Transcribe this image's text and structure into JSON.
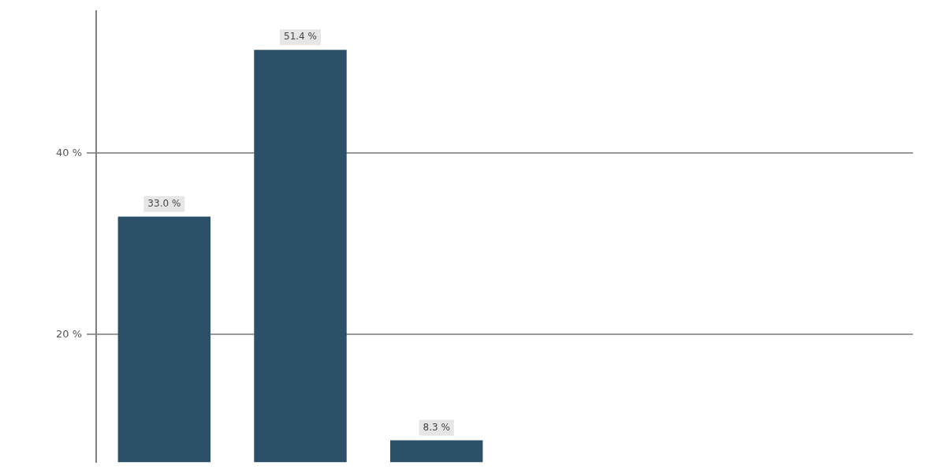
{
  "chart_data": {
    "type": "bar",
    "categories": [
      null,
      null,
      null,
      null,
      null,
      null
    ],
    "values": [
      33.0,
      51.4,
      8.3,
      null,
      null,
      null
    ],
    "value_labels": [
      "33.0 %",
      "51.4 %",
      "8.3 %",
      null,
      null,
      null
    ],
    "color": "#2b5068",
    "ylim": [
      5.9,
      55.7
    ],
    "yticks": [
      {
        "value": 20,
        "label": "20 %"
      },
      {
        "value": 40,
        "label": "40 %"
      }
    ],
    "grid": "y",
    "tick_labels": "y"
  }
}
